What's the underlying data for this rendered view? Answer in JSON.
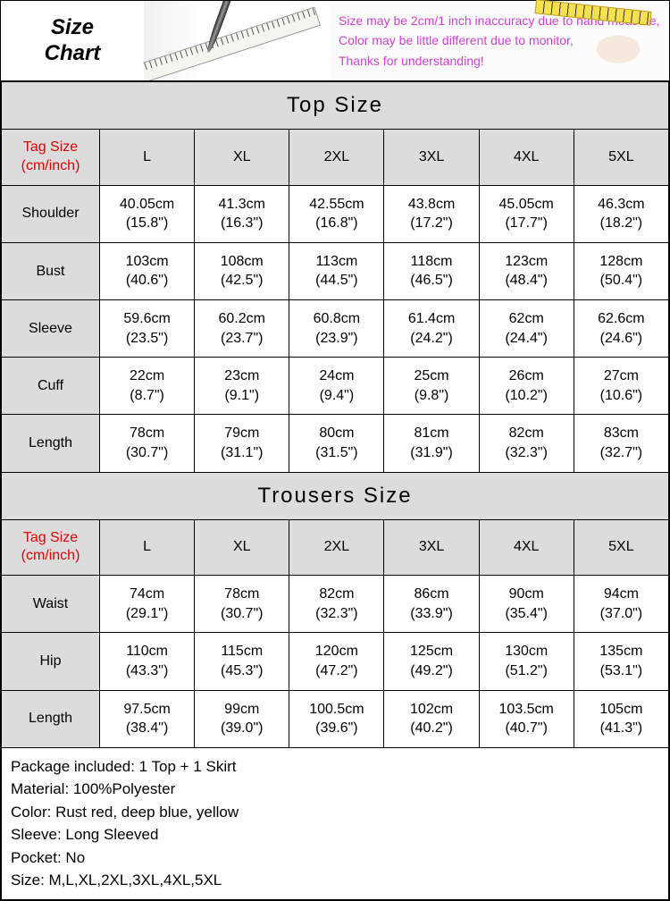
{
  "header": {
    "title_line1": "Size",
    "title_line2": "Chart",
    "note1": "Size may be 2cm/1 inch inaccuracy due to hand measure,",
    "note2": "Color may be little different due to monitor,",
    "note3": "Thanks for understanding!"
  },
  "top": {
    "section_title": "Top  Size",
    "tag_label_line1": "Tag Size",
    "tag_label_line2": "(cm/inch)",
    "sizes": [
      "L",
      "XL",
      "2XL",
      "3XL",
      "4XL",
      "5XL"
    ],
    "rows": [
      {
        "label": "Shoulder",
        "cells": [
          {
            "cm": "40.05cm",
            "in": "(15.8\")"
          },
          {
            "cm": "41.3cm",
            "in": "(16.3\")"
          },
          {
            "cm": "42.55cm",
            "in": "(16.8\")"
          },
          {
            "cm": "43.8cm",
            "in": "(17.2\")"
          },
          {
            "cm": "45.05cm",
            "in": "(17.7\")"
          },
          {
            "cm": "46.3cm",
            "in": "(18.2\")"
          }
        ]
      },
      {
        "label": "Bust",
        "cells": [
          {
            "cm": "103cm",
            "in": "(40.6\")"
          },
          {
            "cm": "108cm",
            "in": "(42.5\")"
          },
          {
            "cm": "113cm",
            "in": "(44.5\")"
          },
          {
            "cm": "118cm",
            "in": "(46.5\")"
          },
          {
            "cm": "123cm",
            "in": "(48.4\")"
          },
          {
            "cm": "128cm",
            "in": "(50.4\")"
          }
        ]
      },
      {
        "label": "Sleeve",
        "cells": [
          {
            "cm": "59.6cm",
            "in": "(23.5\")"
          },
          {
            "cm": "60.2cm",
            "in": "(23.7\")"
          },
          {
            "cm": "60.8cm",
            "in": "(23.9\")"
          },
          {
            "cm": "61.4cm",
            "in": "(24.2\")"
          },
          {
            "cm": "62cm",
            "in": "(24.4\")"
          },
          {
            "cm": "62.6cm",
            "in": "(24.6\")"
          }
        ]
      },
      {
        "label": "Cuff",
        "cells": [
          {
            "cm": "22cm",
            "in": "(8.7\")"
          },
          {
            "cm": "23cm",
            "in": "(9.1\")"
          },
          {
            "cm": "24cm",
            "in": "(9.4\")"
          },
          {
            "cm": "25cm",
            "in": "(9.8\")"
          },
          {
            "cm": "26cm",
            "in": "(10.2\")"
          },
          {
            "cm": "27cm",
            "in": "(10.6\")"
          }
        ]
      },
      {
        "label": "Length",
        "cells": [
          {
            "cm": "78cm",
            "in": "(30.7\")"
          },
          {
            "cm": "79cm",
            "in": "(31.1\")"
          },
          {
            "cm": "80cm",
            "in": "(31.5\")"
          },
          {
            "cm": "81cm",
            "in": "(31.9\")"
          },
          {
            "cm": "82cm",
            "in": "(32.3\")"
          },
          {
            "cm": "83cm",
            "in": "(32.7\")"
          }
        ]
      }
    ]
  },
  "trousers": {
    "section_title": "Trousers  Size",
    "tag_label_line1": "Tag Size",
    "tag_label_line2": "(cm/inch)",
    "sizes": [
      "L",
      "XL",
      "2XL",
      "3XL",
      "4XL",
      "5XL"
    ],
    "rows": [
      {
        "label": "Waist",
        "cells": [
          {
            "cm": "74cm",
            "in": "(29.1\")"
          },
          {
            "cm": "78cm",
            "in": "(30.7\")"
          },
          {
            "cm": "82cm",
            "in": "(32.3\")"
          },
          {
            "cm": "86cm",
            "in": "(33.9\")"
          },
          {
            "cm": "90cm",
            "in": "(35.4\")"
          },
          {
            "cm": "94cm",
            "in": "(37.0\")"
          }
        ]
      },
      {
        "label": "Hip",
        "cells": [
          {
            "cm": "110cm",
            "in": "(43.3\")"
          },
          {
            "cm": "115cm",
            "in": "(45.3\")"
          },
          {
            "cm": "120cm",
            "in": "(47.2\")"
          },
          {
            "cm": "125cm",
            "in": "(49.2\")"
          },
          {
            "cm": "130cm",
            "in": "(51.2\")"
          },
          {
            "cm": "135cm",
            "in": "(53.1\")"
          }
        ]
      },
      {
        "label": "Length",
        "cells": [
          {
            "cm": "97.5cm",
            "in": "(38.4\")"
          },
          {
            "cm": "99cm",
            "in": "(39.0\")"
          },
          {
            "cm": "100.5cm",
            "in": "(39.6\")"
          },
          {
            "cm": "102cm",
            "in": "(40.2\")"
          },
          {
            "cm": "103.5cm",
            "in": "(40.7\")"
          },
          {
            "cm": "105cm",
            "in": "(41.3\")"
          }
        ]
      }
    ]
  },
  "details": {
    "line1": "Package included: 1  Top + 1 Skirt",
    "line2": "Material: 100%Polyester",
    "line3": "Color: Rust red, deep blue, yellow",
    "line4": "Sleeve: Long Sleeved",
    "line5": "Pocket: No",
    "line6": "Size: M,L,XL,2XL,3XL,4XL,5XL"
  },
  "style": {
    "header_row_bg": "#dcdcdc",
    "tag_color": "#e00000",
    "note_color": "#d040d0",
    "border_color": "#000000",
    "cell_bg": "#ffffff"
  }
}
